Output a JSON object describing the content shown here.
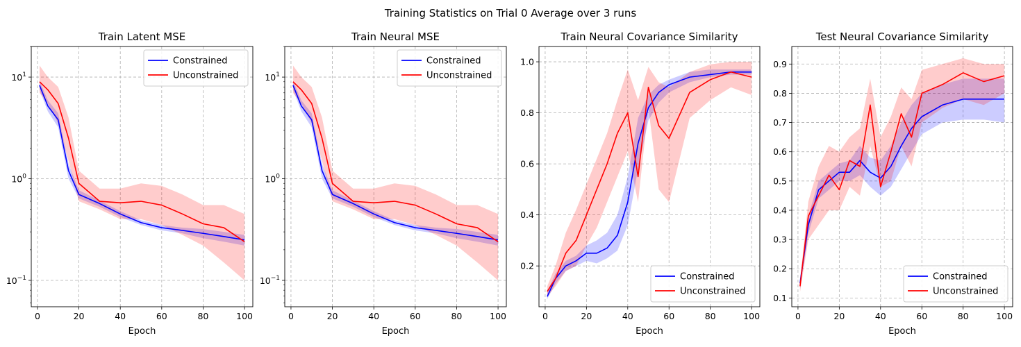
{
  "figure": {
    "suptitle": "Training Statistics on Trial 0 Average over 3 runs"
  },
  "colors": {
    "constrained": "#0000ff",
    "unconstrained": "#ff0000",
    "constrained_band": "rgba(0,0,255,0.2)",
    "unconstrained_band": "rgba(255,0,0,0.2)",
    "grid": "#b0b0b0"
  },
  "chart_data": [
    {
      "type": "line",
      "title": "Train Latent MSE",
      "xlabel": "Epoch",
      "ylabel": "",
      "yscale": "log",
      "xlim": [
        -3,
        104
      ],
      "ylim": [
        0.055,
        20
      ],
      "xticks": [
        "0",
        "20",
        "40",
        "60",
        "80",
        "100"
      ],
      "yticks": [
        {
          "value": 0.1,
          "base": "10",
          "exp": "−1"
        },
        {
          "value": 1,
          "base": "10",
          "exp": "0"
        },
        {
          "value": 10,
          "base": "10",
          "exp": "1"
        }
      ],
      "grid": true,
      "legend": "top-right",
      "x": [
        1,
        5,
        10,
        15,
        20,
        30,
        40,
        50,
        60,
        70,
        80,
        90,
        100
      ],
      "series": [
        {
          "name": "Constrained",
          "color": "blue",
          "values": [
            8.3,
            5.2,
            3.8,
            1.2,
            0.7,
            0.57,
            0.45,
            0.37,
            0.33,
            0.31,
            0.29,
            0.27,
            0.25
          ],
          "band_low": [
            7.5,
            4.6,
            3.2,
            1.0,
            0.64,
            0.53,
            0.42,
            0.35,
            0.31,
            0.29,
            0.26,
            0.24,
            0.22
          ],
          "band_high": [
            9.2,
            5.9,
            4.4,
            1.4,
            0.77,
            0.61,
            0.48,
            0.39,
            0.35,
            0.33,
            0.32,
            0.3,
            0.28
          ]
        },
        {
          "name": "Unconstrained",
          "color": "red",
          "values": [
            9.0,
            7.5,
            5.5,
            2.5,
            0.9,
            0.6,
            0.58,
            0.6,
            0.55,
            0.45,
            0.36,
            0.33,
            0.24
          ],
          "band_low": [
            7.0,
            5.5,
            3.5,
            1.5,
            0.6,
            0.5,
            0.4,
            0.4,
            0.35,
            0.28,
            0.22,
            0.15,
            0.1
          ],
          "band_high": [
            13.0,
            10.0,
            8.0,
            4.0,
            1.2,
            0.8,
            0.8,
            0.9,
            0.85,
            0.7,
            0.55,
            0.55,
            0.45
          ]
        }
      ]
    },
    {
      "type": "line",
      "title": "Train Neural MSE",
      "xlabel": "Epoch",
      "ylabel": "",
      "yscale": "log",
      "xlim": [
        -3,
        104
      ],
      "ylim": [
        0.055,
        20
      ],
      "xticks": [
        "0",
        "20",
        "40",
        "60",
        "80",
        "100"
      ],
      "yticks": [
        {
          "value": 0.1,
          "base": "10",
          "exp": "−1"
        },
        {
          "value": 1,
          "base": "10",
          "exp": "0"
        },
        {
          "value": 10,
          "base": "10",
          "exp": "1"
        }
      ],
      "grid": true,
      "legend": "top-right",
      "x": [
        1,
        5,
        10,
        15,
        20,
        30,
        40,
        50,
        60,
        70,
        80,
        90,
        100
      ],
      "series": [
        {
          "name": "Constrained",
          "color": "blue",
          "values": [
            8.3,
            5.2,
            3.8,
            1.2,
            0.7,
            0.57,
            0.45,
            0.37,
            0.33,
            0.31,
            0.29,
            0.27,
            0.25
          ],
          "band_low": [
            7.5,
            4.6,
            3.2,
            1.0,
            0.64,
            0.53,
            0.42,
            0.35,
            0.31,
            0.29,
            0.26,
            0.24,
            0.22
          ],
          "band_high": [
            9.2,
            5.9,
            4.4,
            1.4,
            0.77,
            0.61,
            0.48,
            0.39,
            0.35,
            0.33,
            0.32,
            0.3,
            0.28
          ]
        },
        {
          "name": "Unconstrained",
          "color": "red",
          "values": [
            9.0,
            7.5,
            5.5,
            2.5,
            0.9,
            0.6,
            0.58,
            0.6,
            0.55,
            0.45,
            0.36,
            0.33,
            0.24
          ],
          "band_low": [
            7.0,
            5.5,
            3.5,
            1.5,
            0.6,
            0.5,
            0.4,
            0.4,
            0.35,
            0.28,
            0.22,
            0.15,
            0.1
          ],
          "band_high": [
            13.0,
            10.0,
            8.0,
            4.0,
            1.2,
            0.8,
            0.8,
            0.9,
            0.85,
            0.7,
            0.55,
            0.55,
            0.45
          ]
        }
      ]
    },
    {
      "type": "line",
      "title": "Train Neural Covariance Similarity",
      "xlabel": "Epoch",
      "ylabel": "",
      "yscale": "linear",
      "xlim": [
        -3,
        104
      ],
      "ylim": [
        0.04,
        1.06
      ],
      "xticks": [
        "0",
        "20",
        "40",
        "60",
        "80",
        "100"
      ],
      "yticks": [
        {
          "value": 0.2,
          "label": "0.2"
        },
        {
          "value": 0.4,
          "label": "0.4"
        },
        {
          "value": 0.6,
          "label": "0.6"
        },
        {
          "value": 0.8,
          "label": "0.8"
        },
        {
          "value": 1.0,
          "label": "1.0"
        }
      ],
      "grid": true,
      "legend": "bottom-right",
      "x": [
        1,
        5,
        10,
        15,
        20,
        25,
        30,
        35,
        40,
        45,
        50,
        55,
        60,
        70,
        80,
        90,
        100
      ],
      "series": [
        {
          "name": "Constrained",
          "color": "blue",
          "values": [
            0.08,
            0.15,
            0.2,
            0.22,
            0.25,
            0.25,
            0.27,
            0.32,
            0.45,
            0.68,
            0.82,
            0.88,
            0.91,
            0.94,
            0.95,
            0.96,
            0.96
          ],
          "band_low": [
            0.07,
            0.13,
            0.18,
            0.2,
            0.22,
            0.21,
            0.23,
            0.26,
            0.36,
            0.58,
            0.77,
            0.84,
            0.88,
            0.92,
            0.94,
            0.95,
            0.95
          ],
          "band_high": [
            0.1,
            0.17,
            0.22,
            0.24,
            0.28,
            0.3,
            0.33,
            0.4,
            0.55,
            0.78,
            0.87,
            0.91,
            0.93,
            0.96,
            0.97,
            0.97,
            0.97
          ]
        },
        {
          "name": "Unconstrained",
          "color": "red",
          "values": [
            0.1,
            0.15,
            0.25,
            0.3,
            0.4,
            0.5,
            0.6,
            0.72,
            0.8,
            0.55,
            0.9,
            0.75,
            0.7,
            0.88,
            0.93,
            0.96,
            0.94
          ],
          "band_low": [
            0.08,
            0.12,
            0.18,
            0.2,
            0.28,
            0.35,
            0.45,
            0.55,
            0.65,
            0.45,
            0.82,
            0.5,
            0.45,
            0.78,
            0.85,
            0.9,
            0.87
          ],
          "band_high": [
            0.12,
            0.2,
            0.33,
            0.42,
            0.52,
            0.62,
            0.72,
            0.85,
            0.97,
            0.85,
            0.98,
            0.92,
            0.9,
            0.96,
            0.99,
            1.0,
            1.0
          ]
        }
      ]
    },
    {
      "type": "line",
      "title": "Test Neural Covariance Similarity",
      "xlabel": "Epoch",
      "ylabel": "",
      "yscale": "linear",
      "xlim": [
        -3,
        104
      ],
      "ylim": [
        0.07,
        0.96
      ],
      "xticks": [
        "0",
        "20",
        "40",
        "60",
        "80",
        "100"
      ],
      "yticks": [
        {
          "value": 0.1,
          "label": "0.1"
        },
        {
          "value": 0.2,
          "label": "0.2"
        },
        {
          "value": 0.3,
          "label": "0.3"
        },
        {
          "value": 0.4,
          "label": "0.4"
        },
        {
          "value": 0.5,
          "label": "0.5"
        },
        {
          "value": 0.6,
          "label": "0.6"
        },
        {
          "value": 0.7,
          "label": "0.7"
        },
        {
          "value": 0.8,
          "label": "0.8"
        },
        {
          "value": 0.9,
          "label": "0.9"
        }
      ],
      "grid": true,
      "legend": "bottom-right",
      "x": [
        1,
        5,
        10,
        15,
        20,
        25,
        30,
        35,
        40,
        45,
        50,
        55,
        60,
        70,
        80,
        90,
        100
      ],
      "series": [
        {
          "name": "Constrained",
          "color": "blue",
          "values": [
            0.15,
            0.35,
            0.47,
            0.5,
            0.53,
            0.53,
            0.57,
            0.53,
            0.51,
            0.55,
            0.62,
            0.68,
            0.72,
            0.76,
            0.78,
            0.78,
            0.78
          ],
          "band_low": [
            0.13,
            0.32,
            0.44,
            0.47,
            0.5,
            0.5,
            0.52,
            0.48,
            0.45,
            0.48,
            0.54,
            0.6,
            0.66,
            0.7,
            0.71,
            0.71,
            0.7
          ],
          "band_high": [
            0.17,
            0.38,
            0.5,
            0.53,
            0.56,
            0.57,
            0.62,
            0.58,
            0.57,
            0.62,
            0.7,
            0.76,
            0.8,
            0.83,
            0.85,
            0.85,
            0.85
          ]
        },
        {
          "name": "Unconstrained",
          "color": "red",
          "values": [
            0.14,
            0.38,
            0.45,
            0.52,
            0.47,
            0.57,
            0.55,
            0.76,
            0.48,
            0.6,
            0.73,
            0.65,
            0.8,
            0.83,
            0.87,
            0.84,
            0.86
          ],
          "band_low": [
            0.12,
            0.3,
            0.35,
            0.4,
            0.4,
            0.48,
            0.45,
            0.62,
            0.48,
            0.5,
            0.62,
            0.55,
            0.7,
            0.75,
            0.78,
            0.76,
            0.8
          ],
          "band_high": [
            0.16,
            0.43,
            0.55,
            0.62,
            0.6,
            0.65,
            0.68,
            0.85,
            0.65,
            0.72,
            0.82,
            0.78,
            0.88,
            0.9,
            0.92,
            0.9,
            0.9
          ]
        }
      ]
    }
  ]
}
